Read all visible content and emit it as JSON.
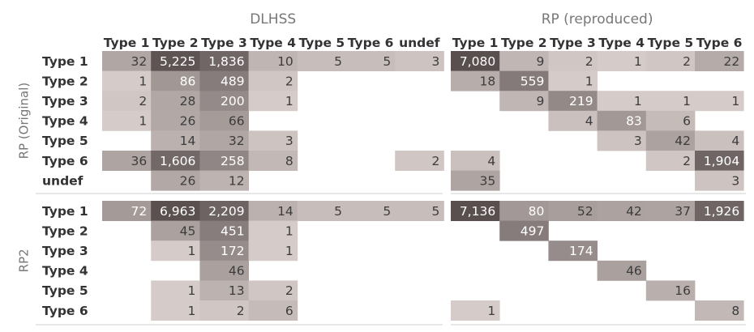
{
  "chart_data": {
    "type": "heatmap",
    "row_groups": [
      {
        "label": "RP (Original)",
        "rows": [
          "Type 1",
          "Type 2",
          "Type 3",
          "Type 4",
          "Type 5",
          "Type 6",
          "undef"
        ]
      },
      {
        "label": "RP2",
        "rows": [
          "Type 1",
          "Type 2",
          "Type 3",
          "Type 4",
          "Type 5",
          "Type 6"
        ]
      }
    ],
    "column_groups": [
      {
        "label": "DLHSS",
        "columns": [
          "Type 1",
          "Type 2",
          "Type 3",
          "Type 4",
          "Type 5",
          "Type 6",
          "undef"
        ]
      },
      {
        "label": "RP (reproduced)",
        "columns": [
          "Type 1",
          "Type 2",
          "Type 3",
          "Type 4",
          "Type 5",
          "Type 6"
        ]
      }
    ],
    "panels": [
      [
        [
          [
            32,
            5225,
            1836,
            10,
            5,
            5,
            3
          ],
          [
            1,
            86,
            489,
            2,
            null,
            null,
            null
          ],
          [
            2,
            28,
            200,
            1,
            null,
            null,
            null
          ],
          [
            1,
            26,
            66,
            null,
            null,
            null,
            null
          ],
          [
            null,
            14,
            32,
            3,
            null,
            null,
            null
          ],
          [
            36,
            1606,
            258,
            8,
            null,
            null,
            2
          ],
          [
            null,
            26,
            12,
            null,
            null,
            null,
            null
          ]
        ],
        [
          [
            7080,
            9,
            2,
            1,
            2,
            22
          ],
          [
            18,
            559,
            1,
            null,
            null,
            null
          ],
          [
            null,
            9,
            219,
            1,
            1,
            1
          ],
          [
            null,
            null,
            4,
            83,
            6,
            null
          ],
          [
            null,
            null,
            null,
            3,
            42,
            4
          ],
          [
            4,
            null,
            null,
            null,
            2,
            1904
          ],
          [
            35,
            null,
            null,
            null,
            null,
            3
          ]
        ]
      ],
      [
        [
          [
            72,
            6963,
            2209,
            14,
            5,
            5,
            5
          ],
          [
            null,
            45,
            451,
            1,
            null,
            null,
            null
          ],
          [
            null,
            1,
            172,
            1,
            null,
            null,
            null
          ],
          [
            null,
            null,
            46,
            null,
            null,
            null,
            null
          ],
          [
            null,
            1,
            13,
            2,
            null,
            null,
            null
          ],
          [
            null,
            1,
            2,
            6,
            null,
            null,
            null
          ]
        ],
        [
          [
            7136,
            80,
            52,
            42,
            37,
            1926
          ],
          [
            null,
            497,
            null,
            null,
            null,
            null
          ],
          [
            null,
            null,
            174,
            null,
            null,
            null
          ],
          [
            null,
            null,
            null,
            46,
            null,
            null
          ],
          [
            null,
            null,
            null,
            null,
            16,
            null
          ],
          [
            1,
            null,
            null,
            null,
            null,
            8
          ]
        ]
      ]
    ],
    "colors": {
      "low": "#dcd3d0",
      "high": "#5a4f4f",
      "text_light": "#ffffff",
      "text_dark": "#3c3c3c"
    }
  }
}
